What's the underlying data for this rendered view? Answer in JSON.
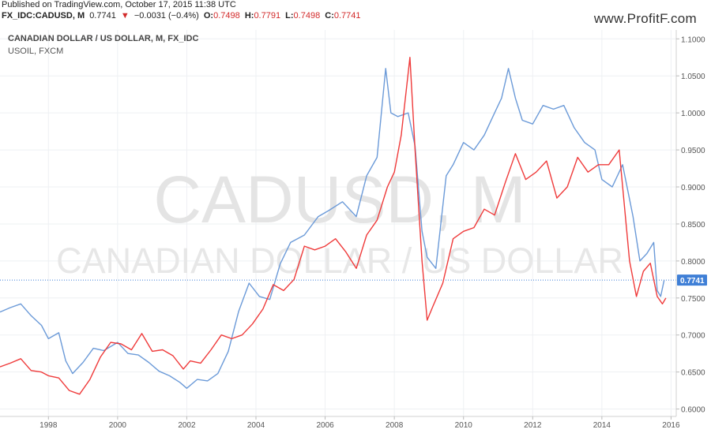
{
  "header": {
    "published": "Published on TradingView.com, October 17, 2015 11:38 UTC",
    "symbol": "FX_IDC:CADUSD, M",
    "last": "0.7741",
    "change_arrow": "▼",
    "change": "−0.0031 (−0.4%)",
    "o_label": "O:",
    "o_value": "0.7498",
    "h_label": "H:",
    "h_value": "0.7791",
    "l_label": "L:",
    "l_value": "0.7498",
    "c_label": "C:",
    "c_value": "0.7741"
  },
  "watermark_logo": "www.ProfitF.com",
  "chart_data": {
    "type": "line",
    "title": "CANADIAN DOLLAR / US DOLLAR, M, FX_IDC",
    "subtitle": "USOIL, FXCM",
    "watermark_symbol": "CADUSD, M",
    "watermark_name": "CANADIAN DOLLAR / US DOLLAR",
    "xlim": [
      1996.6,
      2016.15
    ],
    "ylim": [
      0.59,
      1.112
    ],
    "x_ticks": [
      1998,
      2000,
      2002,
      2004,
      2006,
      2008,
      2010,
      2012,
      2014,
      2016
    ],
    "x_tick_labels": [
      "1998",
      "2000",
      "2002",
      "2004",
      "2006",
      "2008",
      "2010",
      "2012",
      "2014",
      "2016"
    ],
    "y_ticks": [
      0.6,
      0.65,
      0.7,
      0.75,
      0.8,
      0.85,
      0.9,
      0.95,
      1.0,
      1.05,
      1.1
    ],
    "y_tick_labels": [
      "0.6000",
      "0.6500",
      "0.7000",
      "0.7500",
      "0.8000",
      "0.8500",
      "0.9000",
      "0.9500",
      "1.0000",
      "1.0500",
      "1.1000"
    ],
    "last_price": 0.7741,
    "last_price_label": "0.7741",
    "grid": true,
    "colors": {
      "cadusd": "#6b9ad8",
      "usoil": "#ef3a3a",
      "last_badge": "#3f7fd6",
      "grid": "#eef0f3",
      "axis_text": "#555555"
    },
    "series": [
      {
        "key": "cadusd",
        "x": [
          1996.6,
          1996.9,
          1997.2,
          1997.5,
          1997.8,
          1998.0,
          1998.3,
          1998.5,
          1998.7,
          1999.0,
          1999.3,
          1999.6,
          2000.0,
          2000.3,
          2000.6,
          2000.9,
          2001.2,
          2001.5,
          2001.8,
          2002.0,
          2002.3,
          2002.6,
          2002.9,
          2003.2,
          2003.5,
          2003.8,
          2004.1,
          2004.4,
          2004.7,
          2005.0,
          2005.4,
          2005.8,
          2006.1,
          2006.5,
          2006.9,
          2007.2,
          2007.5,
          2007.75,
          2007.9,
          2008.1,
          2008.4,
          2008.6,
          2008.8,
          2008.95,
          2009.2,
          2009.5,
          2009.7,
          2010.0,
          2010.3,
          2010.6,
          2010.9,
          2011.1,
          2011.3,
          2011.5,
          2011.7,
          2012.0,
          2012.3,
          2012.6,
          2012.9,
          2013.2,
          2013.5,
          2013.8,
          2014.0,
          2014.3,
          2014.6,
          2014.9,
          2015.1,
          2015.3,
          2015.5,
          2015.6,
          2015.7,
          2015.8
        ],
        "y": [
          0.731,
          0.737,
          0.742,
          0.726,
          0.713,
          0.695,
          0.703,
          0.665,
          0.648,
          0.663,
          0.682,
          0.679,
          0.69,
          0.675,
          0.673,
          0.663,
          0.651,
          0.645,
          0.636,
          0.628,
          0.64,
          0.638,
          0.648,
          0.678,
          0.732,
          0.77,
          0.752,
          0.748,
          0.796,
          0.825,
          0.835,
          0.86,
          0.868,
          0.88,
          0.86,
          0.915,
          0.94,
          1.06,
          1.0,
          0.995,
          1.0,
          0.955,
          0.84,
          0.805,
          0.79,
          0.915,
          0.93,
          0.96,
          0.95,
          0.97,
          1.0,
          1.02,
          1.06,
          1.02,
          0.99,
          0.985,
          1.01,
          1.005,
          1.01,
          0.98,
          0.96,
          0.95,
          0.91,
          0.9,
          0.93,
          0.86,
          0.8,
          0.81,
          0.825,
          0.76,
          0.752,
          0.7741
        ]
      },
      {
        "key": "usoil",
        "x": [
          1996.6,
          1996.9,
          1997.2,
          1997.5,
          1997.8,
          1998.0,
          1998.3,
          1998.6,
          1998.9,
          1999.2,
          1999.5,
          1999.8,
          2000.1,
          2000.4,
          2000.7,
          2001.0,
          2001.3,
          2001.6,
          2001.9,
          2002.1,
          2002.4,
          2002.7,
          2003.0,
          2003.3,
          2003.6,
          2003.9,
          2004.2,
          2004.5,
          2004.8,
          2005.1,
          2005.4,
          2005.7,
          2006.0,
          2006.3,
          2006.6,
          2006.9,
          2007.2,
          2007.5,
          2007.8,
          2008.0,
          2008.2,
          2008.45,
          2008.6,
          2008.8,
          2008.95,
          2009.1,
          2009.4,
          2009.7,
          2010.0,
          2010.3,
          2010.6,
          2010.9,
          2011.2,
          2011.5,
          2011.8,
          2012.1,
          2012.4,
          2012.7,
          2013.0,
          2013.3,
          2013.6,
          2013.9,
          2014.2,
          2014.5,
          2014.8,
          2015.0,
          2015.2,
          2015.4,
          2015.6,
          2015.75,
          2015.85
        ],
        "y": [
          0.657,
          0.662,
          0.668,
          0.652,
          0.65,
          0.645,
          0.642,
          0.625,
          0.62,
          0.64,
          0.67,
          0.69,
          0.688,
          0.68,
          0.702,
          0.678,
          0.68,
          0.672,
          0.654,
          0.665,
          0.662,
          0.68,
          0.7,
          0.695,
          0.7,
          0.715,
          0.735,
          0.768,
          0.76,
          0.775,
          0.82,
          0.815,
          0.82,
          0.83,
          0.812,
          0.79,
          0.835,
          0.855,
          0.9,
          0.92,
          0.97,
          1.075,
          0.95,
          0.8,
          0.72,
          0.737,
          0.77,
          0.83,
          0.84,
          0.845,
          0.87,
          0.862,
          0.905,
          0.945,
          0.91,
          0.92,
          0.935,
          0.885,
          0.9,
          0.94,
          0.92,
          0.93,
          0.93,
          0.95,
          0.8,
          0.752,
          0.786,
          0.797,
          0.752,
          0.742,
          0.75
        ]
      }
    ]
  }
}
